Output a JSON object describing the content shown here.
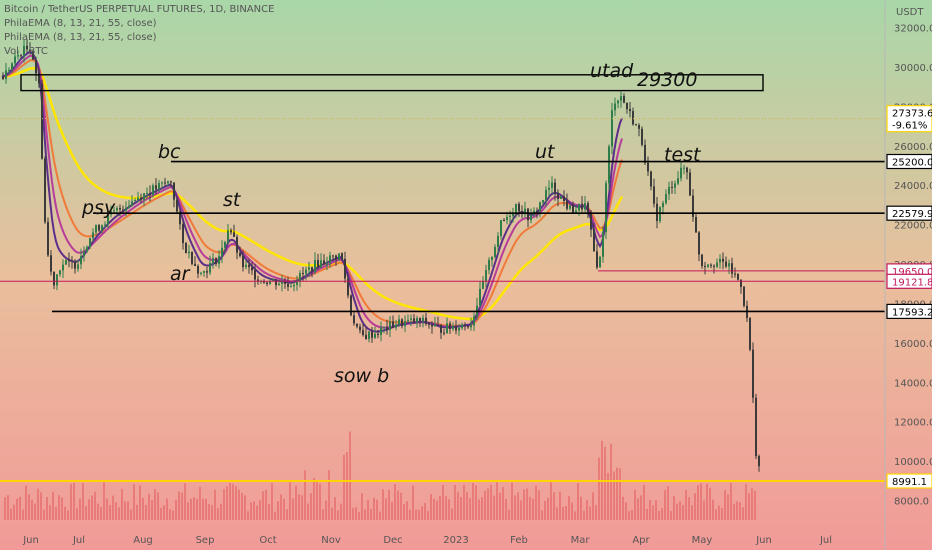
{
  "header": {
    "symbol_line": "Bitcoin / TetherUS PERPETUAL FUTURES, 1D, BINANCE",
    "indicator1": "PhilaEMA (8, 13, 21, 55, close)",
    "indicator2": "PhilaEMA (8, 13, 21, 55, close)",
    "indicator3": "Vol · BTC"
  },
  "price_axis": {
    "unit": "USDT",
    "ticks": [
      "32000.0",
      "30000.0",
      "28000.0",
      "26000.0",
      "24000.0",
      "22000.0",
      "20000.0",
      "18000.0",
      "16000.0",
      "14000.0",
      "12000.0",
      "10000.0",
      "8000.0"
    ]
  },
  "time_axis": {
    "labels": [
      "Jun",
      "Jul",
      "Aug",
      "Sep",
      "Oct",
      "Nov",
      "Dec",
      "2023",
      "Feb",
      "Mar",
      "Apr",
      "May",
      "Jun",
      "Jul"
    ]
  },
  "price_labels": [
    {
      "text": "27373.6",
      "sub": "-9.61%",
      "value": 27373.6,
      "color": "#ffffff",
      "text_color": "#000000",
      "border": "#ffd400"
    },
    {
      "text": "25200.0",
      "value": 25200,
      "color": "#ffffff",
      "text_color": "#000000",
      "border": "#000000"
    },
    {
      "text": "22579.9",
      "value": 22579.9,
      "color": "#ffffff",
      "text_color": "#000000",
      "border": "#000000"
    },
    {
      "text": "19650.0",
      "value": 19650,
      "color": "#ffffff",
      "text_color": "#c2185b",
      "border": "#c2185b"
    },
    {
      "text": "19121.8",
      "value": 19121.8,
      "color": "#ffffff",
      "text_color": "#c2185b",
      "border": "#c2185b"
    },
    {
      "text": "17593.2",
      "value": 17593.2,
      "color": "#ffffff",
      "text_color": "#000000",
      "border": "#000000"
    },
    {
      "text": "8991.1",
      "value": 8991.1,
      "color": "#ffffff",
      "text_color": "#000000",
      "border": "#ffd400"
    }
  ],
  "annotations": [
    "psy",
    "bc",
    "ar",
    "st",
    "sow b",
    "ut",
    "utad",
    "29300",
    "test"
  ],
  "colors": {
    "bg_top": "#a9d7a8",
    "bg_mid": "#e9bf9c",
    "bg_bottom": "#f19a98",
    "candle": "#3b3b3b",
    "ema_purple": "#5e2f8a",
    "ema_magenta": "#b83c9a",
    "ema_orange": "#f07a3a",
    "ema_yellow": "#ffe600",
    "volume": "#e56f6f"
  },
  "chart_data": {
    "type": "candlestick",
    "title": "Bitcoin / TetherUS PERPETUAL FUTURES, 1D, BINANCE",
    "ylabel": "USDT",
    "ylim": [
      7000,
      33500
    ],
    "x_labels": [
      "Jun",
      "Jul",
      "Aug",
      "Sep",
      "Oct",
      "Nov",
      "Dec",
      "2023",
      "Feb",
      "Mar",
      "Apr",
      "May",
      "Jun",
      "Jul"
    ],
    "levels": [
      25200,
      22579.9,
      17593.2,
      19650,
      19121.8,
      8991.1
    ],
    "box_zone": [
      28800,
      29600
    ],
    "approx_close_path": [
      {
        "date": "Jun",
        "price": 31000
      },
      {
        "date": "mid Jun",
        "price": 20000
      },
      {
        "date": "late Jun",
        "price": 19000
      },
      {
        "date": "Jul",
        "price": 20000
      },
      {
        "date": "Aug",
        "price": 24000
      },
      {
        "date": "Sep",
        "price": 20000
      },
      {
        "date": "Oct",
        "price": 19200
      },
      {
        "date": "Nov",
        "price": 20500
      },
      {
        "date": "mid Nov",
        "price": 16000
      },
      {
        "date": "Dec",
        "price": 17000
      },
      {
        "date": "2023",
        "price": 16600
      },
      {
        "date": "Feb",
        "price": 23000
      },
      {
        "date": "Mar",
        "price": 22000
      },
      {
        "date": "mid Mar",
        "price": 20000
      },
      {
        "date": "late Mar",
        "price": 28300
      },
      {
        "date": "Apr",
        "price": 28000
      },
      {
        "date": "mid Apr",
        "price": 23000
      },
      {
        "date": "May",
        "price": 20000
      },
      {
        "date": "mid May",
        "price": 17000
      },
      {
        "date": "late May",
        "price": 9600
      }
    ]
  }
}
